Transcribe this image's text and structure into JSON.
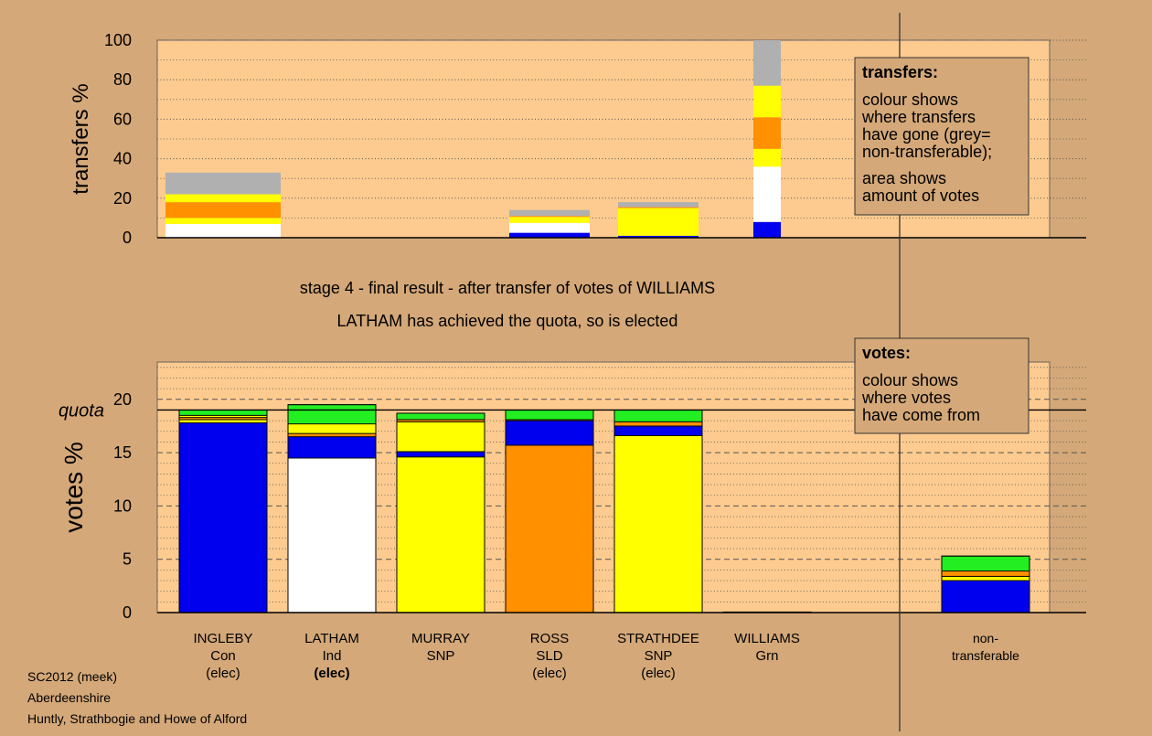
{
  "colors": {
    "background": "#d4a878",
    "plot_bg": "#fdcb8f",
    "Con": "#0000ee",
    "Ind": "#ffffff",
    "SNP": "#ffff00",
    "SLD": "#ff9000",
    "Grn": "#22ee22",
    "non_transferable": "#b0b0b0"
  },
  "headings": {
    "line1": "stage 4 - final result - after transfer of votes of WILLIAMS",
    "line2": "LATHAM has achieved the quota, so is elected"
  },
  "footer": {
    "line1": "SC2012 (meek)",
    "line2": "Aberdeenshire",
    "line3": "Huntly, Strathbogie and Howe of Alford"
  },
  "legend_transfers": {
    "title": "transfers:",
    "lines": [
      "colour shows",
      "where transfers",
      "have gone (grey=",
      "non-transferable);",
      "area shows",
      "amount of votes"
    ]
  },
  "legend_votes": {
    "title": "votes:",
    "lines": [
      "colour shows",
      "where votes",
      "have come from"
    ]
  },
  "chart_data": [
    {
      "type": "bar",
      "name": "transfers",
      "ylabel": "transfers %",
      "ylim": [
        0,
        100
      ],
      "yticks": [
        0,
        20,
        40,
        60,
        80,
        100
      ],
      "grid": true,
      "bars": [
        {
          "slot": 0,
          "width": "wide",
          "segments": [
            {
              "party": "Ind",
              "value": 7
            },
            {
              "party": "SNP",
              "value": 3
            },
            {
              "party": "SLD",
              "value": 8
            },
            {
              "party": "SNP",
              "value": 4
            },
            {
              "party": "non_transferable",
              "value": 11
            }
          ]
        },
        {
          "slot": 3,
          "width": "medium",
          "segments": [
            {
              "party": "Con",
              "value": 2.5
            },
            {
              "party": "Ind",
              "value": 5
            },
            {
              "party": "SNP",
              "value": 3
            },
            {
              "party": "SLD",
              "value": 0.5
            },
            {
              "party": "non_transferable",
              "value": 3
            }
          ]
        },
        {
          "slot": 4,
          "width": "medium",
          "segments": [
            {
              "party": "Con",
              "value": 1
            },
            {
              "party": "SNP",
              "value": 14
            },
            {
              "party": "SLD",
              "value": 0.5
            },
            {
              "party": "non_transferable",
              "value": 2.5
            }
          ]
        },
        {
          "slot": 5,
          "width": "narrow",
          "segments": [
            {
              "party": "Con",
              "value": 8
            },
            {
              "party": "Ind",
              "value": 28
            },
            {
              "party": "SNP",
              "value": 9
            },
            {
              "party": "SLD",
              "value": 16
            },
            {
              "party": "SNP",
              "value": 16
            },
            {
              "party": "non_transferable",
              "value": 23
            }
          ]
        }
      ]
    },
    {
      "type": "bar",
      "name": "votes",
      "ylabel": "votes %",
      "ylim": [
        0,
        23.5
      ],
      "yticks": [
        0,
        5,
        10,
        15,
        20
      ],
      "quota": 19.0,
      "quota_label": "quota",
      "grid": true,
      "categories": [
        {
          "name": "INGLEBY",
          "party": "Con",
          "status": "(elec)",
          "status_bold": false
        },
        {
          "name": "LATHAM",
          "party": "Ind",
          "status": "(elec)",
          "status_bold": true
        },
        {
          "name": "MURRAY",
          "party": "SNP",
          "status": "",
          "status_bold": false
        },
        {
          "name": "ROSS",
          "party": "SLD",
          "status": "(elec)",
          "status_bold": false
        },
        {
          "name": "STRATHDEE",
          "party": "SNP",
          "status": "(elec)",
          "status_bold": false
        },
        {
          "name": "WILLIAMS",
          "party": "Grn",
          "status": "",
          "status_bold": false
        },
        {
          "name": "non-",
          "party": "transferable",
          "status": "",
          "status_bold": false
        }
      ],
      "bars": [
        {
          "slot": 0,
          "segments": [
            {
              "party": "Con",
              "value": 17.8
            },
            {
              "party": "SNP",
              "value": 0.3
            },
            {
              "party": "SLD",
              "value": 0.2
            },
            {
              "party": "SNP",
              "value": 0.2
            },
            {
              "party": "Grn",
              "value": 0.5
            }
          ]
        },
        {
          "slot": 1,
          "segments": [
            {
              "party": "Ind",
              "value": 14.5
            },
            {
              "party": "Con",
              "value": 2.0
            },
            {
              "party": "SLD",
              "value": 0.3
            },
            {
              "party": "SNP",
              "value": 0.9
            },
            {
              "party": "Grn",
              "value": 1.8
            }
          ]
        },
        {
          "slot": 2,
          "segments": [
            {
              "party": "SNP",
              "value": 14.6
            },
            {
              "party": "Con",
              "value": 0.5
            },
            {
              "party": "SNP",
              "value": 2.8
            },
            {
              "party": "SLD",
              "value": 0.2
            },
            {
              "party": "Grn",
              "value": 0.6
            }
          ]
        },
        {
          "slot": 3,
          "segments": [
            {
              "party": "SLD",
              "value": 15.7
            },
            {
              "party": "Con",
              "value": 2.3
            },
            {
              "party": "SNP",
              "value": 0.1
            },
            {
              "party": "Grn",
              "value": 0.9
            }
          ]
        },
        {
          "slot": 4,
          "segments": [
            {
              "party": "SNP",
              "value": 16.6
            },
            {
              "party": "Con",
              "value": 0.9
            },
            {
              "party": "SLD",
              "value": 0.4
            },
            {
              "party": "Grn",
              "value": 1.1
            }
          ]
        },
        {
          "slot": 5,
          "segments": [
            {
              "party": "Grn",
              "value": 0.05
            }
          ]
        },
        {
          "slot": 6,
          "segments": [
            {
              "party": "Con",
              "value": 3.0
            },
            {
              "party": "SNP",
              "value": 0.4
            },
            {
              "party": "SLD",
              "value": 0.5
            },
            {
              "party": "Grn",
              "value": 1.4
            }
          ]
        }
      ]
    }
  ]
}
